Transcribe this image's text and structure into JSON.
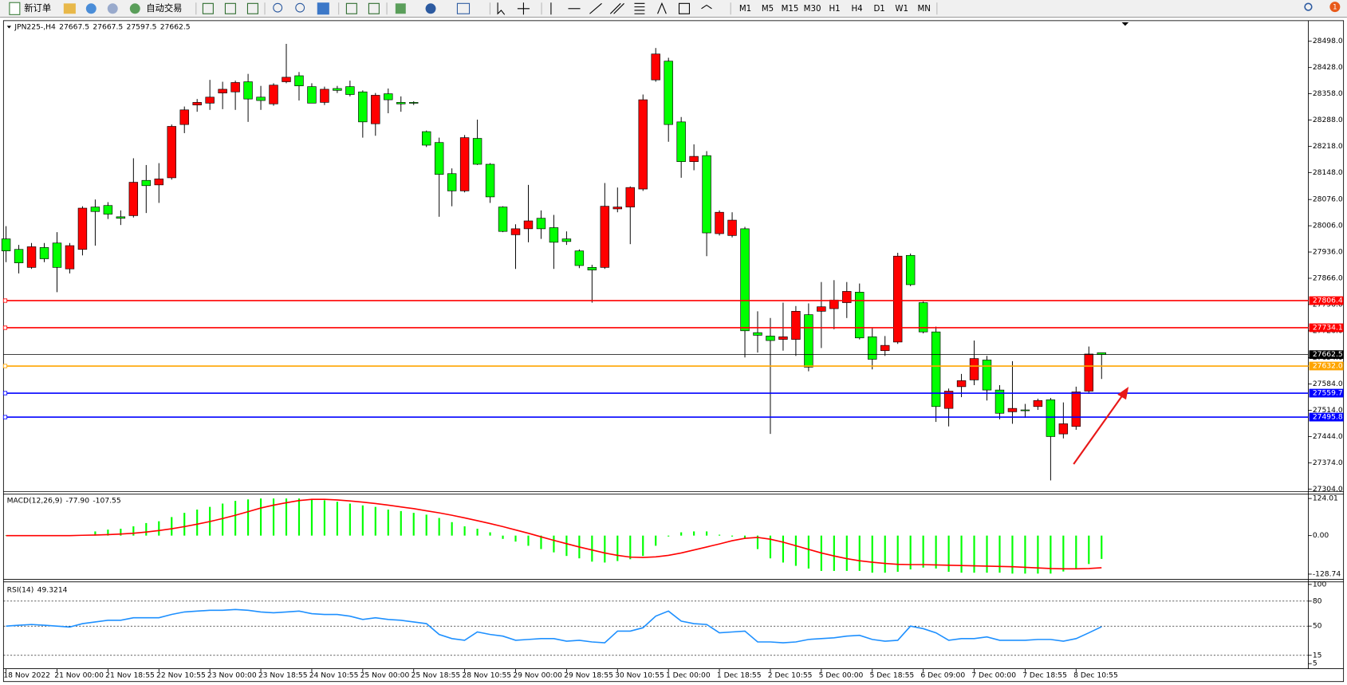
{
  "toolbar": {
    "buttons": [
      "新订单",
      "自动交易"
    ],
    "timeframes": [
      "M1",
      "M5",
      "M15",
      "M30",
      "H1",
      "H4",
      "D1",
      "W1",
      "MN"
    ],
    "notifications": 1
  },
  "chart_data": [
    {
      "type": "candlestick",
      "symbol": "JPN225-,H4",
      "up_color": "#ff0000",
      "down_color": "#00ff00",
      "categories": [
        "18 Nov 2022",
        null,
        null,
        null,
        "21 Nov 00:00",
        null,
        null,
        null,
        "21 Nov 18:55",
        null,
        null,
        null,
        "22 Nov 10:55",
        null,
        null,
        null,
        "23 Nov 00:00",
        null,
        null,
        null,
        "23 Nov 18:55",
        null,
        null,
        null,
        "24 Nov 10:55",
        null,
        null,
        null,
        "25 Nov 00:00",
        null,
        null,
        null,
        "25 Nov 18:55",
        null,
        null,
        null,
        "28 Nov 10:55",
        null,
        null,
        null,
        "29 Nov 00:00",
        null,
        null,
        null,
        "29 Nov 18:55",
        null,
        null,
        null,
        "30 Nov 10:55",
        null,
        null,
        null,
        "1 Dec 00:00",
        null,
        null,
        null,
        "1 Dec 18:55",
        null,
        null,
        null,
        "2 Dec 10:55",
        null,
        null,
        null,
        "5 Dec 00:00",
        null,
        null,
        null,
        "5 Dec 18:55",
        null,
        null,
        null,
        "6 Dec 09:00",
        null,
        null,
        null,
        "7 Dec 00:00",
        null,
        null,
        null,
        "7 Dec 18:55",
        null,
        null,
        null,
        "8 Dec 10:55",
        null,
        null
      ],
      "open": [
        27971,
        27943,
        27895,
        27948,
        27960,
        27891,
        27943,
        28056,
        28060,
        28030,
        28033,
        28127,
        28115,
        28134,
        28276,
        28328,
        28333,
        28360,
        28363,
        28390,
        28349,
        28331,
        28390,
        28406,
        28377,
        28335,
        28372,
        28377,
        28363,
        28278,
        28358,
        28335,
        28335,
        28257,
        28228,
        28145,
        28099,
        28239,
        28170,
        28056,
        27982,
        27998,
        28026,
        28001,
        27971,
        27939,
        27895,
        27895,
        28051,
        28056,
        28104,
        28395,
        28445,
        28283,
        28177,
        28193,
        27985,
        27980,
        27998,
        27721,
        27712,
        27703,
        27703,
        27769,
        27778,
        27785,
        27801,
        27829,
        27710,
        27673,
        27696,
        27927,
        27801,
        27723,
        27519,
        27577,
        27595,
        27648,
        27568,
        27510,
        27515,
        27524,
        27542,
        27451,
        27471,
        27565,
        27667.5
      ],
      "high": [
        28005,
        27955,
        27960,
        27960,
        27989,
        27960,
        28058,
        28076,
        28069,
        28047,
        28186,
        28168,
        28173,
        28276,
        28324,
        28344,
        28395,
        28390,
        28393,
        28411,
        28379,
        28386,
        28491,
        28416,
        28386,
        28377,
        28379,
        28393,
        28367,
        28360,
        28372,
        28351,
        28338,
        28260,
        28241,
        28159,
        28248,
        28289,
        28173,
        28058,
        28010,
        28115,
        28047,
        28035,
        27991,
        27943,
        27902,
        28120,
        28108,
        28111,
        28356,
        28480,
        28454,
        28296,
        28223,
        28205,
        28047,
        28042,
        28003,
        27778,
        27760,
        27801,
        27792,
        27799,
        27856,
        27861,
        27856,
        27852,
        27733,
        27712,
        27934,
        27932,
        27804,
        27737,
        27572,
        27611,
        27700,
        27659,
        27581,
        27645,
        27531,
        27545,
        27547,
        27535,
        27577,
        27684,
        27667.5
      ],
      "low": [
        27909,
        27879,
        27891,
        27909,
        27829,
        27879,
        27927,
        27953,
        28024,
        28008,
        28028,
        28040,
        28067,
        28129,
        28253,
        28310,
        28315,
        28317,
        28315,
        28283,
        28315,
        28326,
        28386,
        28340,
        28333,
        28328,
        28360,
        28351,
        28241,
        28246,
        28306,
        28310,
        28328,
        28216,
        28030,
        28058,
        28095,
        28168,
        28067,
        27989,
        27891,
        27962,
        27971,
        27891,
        27955,
        27893,
        27801,
        27891,
        28042,
        27957,
        28099,
        28390,
        28230,
        28134,
        28154,
        27925,
        27980,
        27975,
        27655,
        27668,
        27451,
        27673,
        27659,
        27618,
        27680,
        27730,
        27760,
        27703,
        27623,
        27659,
        27691,
        27845,
        27719,
        27483,
        27471,
        27549,
        27581,
        27540,
        27490,
        27478,
        27494,
        27515,
        27327,
        27439,
        27462,
        27558,
        27597.5
      ],
      "close": [
        27939,
        27907,
        27950,
        27918,
        27895,
        27953,
        28053,
        28044,
        28037,
        28026,
        28122,
        28113,
        28131,
        28271,
        28315,
        28335,
        28349,
        28370,
        28388,
        28344,
        28340,
        28381,
        28402,
        28379,
        28333,
        28370,
        28367,
        28356,
        28283,
        28354,
        28342,
        28331,
        28333,
        28221,
        28143,
        28099,
        28241,
        28170,
        28083,
        27991,
        27998,
        28019,
        27998,
        27962,
        27964,
        27900,
        27888,
        28058,
        28056,
        28108,
        28342,
        28464,
        28276,
        28177,
        28191,
        27987,
        28042,
        28021,
        27726,
        27714,
        27700,
        27710,
        27778,
        27629,
        27790,
        27808,
        27831,
        27707,
        27650,
        27687,
        27925,
        27849,
        27723,
        27524,
        27565,
        27593,
        27652,
        27568,
        27506,
        27519,
        27513,
        27540,
        27444,
        27478,
        27563,
        27664,
        27662.5
      ],
      "ylim": [
        27304,
        28498
      ],
      "yticks": [
        {
          "value": 28498,
          "label": "28498.0"
        },
        {
          "value": 28428,
          "label": "28428.0"
        },
        {
          "value": 28358,
          "label": "28358.0"
        },
        {
          "value": 28288,
          "label": "28288.0"
        },
        {
          "value": 28218,
          "label": "28218.0"
        },
        {
          "value": 28148,
          "label": "28148.0"
        },
        {
          "value": 28076,
          "label": "28076.0"
        },
        {
          "value": 28006,
          "label": "28006.0"
        },
        {
          "value": 27936,
          "label": "27936.0"
        },
        {
          "value": 27866,
          "label": "27866.0"
        },
        {
          "value": 27796,
          "label": "27796.0"
        },
        {
          "value": 27726,
          "label": "27726.0"
        },
        {
          "value": 27654,
          "label": "27654.0"
        },
        {
          "value": 27584,
          "label": "27584.0"
        },
        {
          "value": 27514,
          "label": "27514.0"
        },
        {
          "value": 27444,
          "label": "27444.0"
        },
        {
          "value": 27374,
          "label": "27374.0"
        },
        {
          "value": 27304,
          "label": "27304.0"
        }
      ],
      "hlines": [
        {
          "value": 27806.4,
          "color": "#ff0000"
        },
        {
          "value": 27734.1,
          "color": "#ff0000"
        },
        {
          "value": 27662.5,
          "color": "#000000"
        },
        {
          "value": 27632,
          "label": "27632.0",
          "color": "#ffa500"
        },
        {
          "value": 27559.7,
          "color": "#0000ff"
        },
        {
          "value": 27495.8,
          "color": "#0000ff"
        }
      ]
    },
    {
      "type": "macd",
      "label": "MACD(12,26,9)",
      "series": [
        {
          "color": "#00ff00",
          "last_value_label": "-77.90",
          "values": [
            0.5,
            0.5,
            0.5,
            0.5,
            0.5,
            1,
            3,
            14,
            20,
            23,
            31,
            42,
            48,
            62,
            76,
            87,
            96,
            107,
            116,
            121,
            124,
            124,
            124,
            124,
            121,
            118,
            113,
            107,
            101,
            96,
            87,
            82,
            76,
            70,
            59,
            45,
            31,
            23,
            11,
            -11,
            -20,
            -34,
            -45,
            -56,
            -68,
            -76,
            -87,
            -90,
            -85,
            -79,
            -68,
            -34,
            -3,
            11,
            14,
            14,
            3,
            -3,
            -11,
            -45,
            -76,
            -90,
            -101,
            -110,
            -118,
            -118,
            -118,
            -118,
            -124,
            -124,
            -121,
            -113,
            -107,
            -110,
            -121,
            -124,
            -124,
            -124,
            -124,
            -127,
            -127,
            -127,
            -127,
            -120,
            -110,
            -95,
            -77.9
          ]
        },
        {
          "color": "#ff0000",
          "values": [
            0,
            0,
            0,
            0,
            0,
            0,
            1,
            2,
            3,
            5,
            8,
            12,
            17,
            23,
            30,
            38,
            47,
            57,
            68,
            80,
            92,
            102,
            110,
            117,
            121,
            121,
            119,
            116,
            112,
            107,
            102,
            96,
            90,
            83,
            76,
            68,
            59,
            50,
            40,
            30,
            19,
            8,
            -4,
            -16,
            -27,
            -38,
            -48,
            -58,
            -66,
            -72,
            -73,
            -71,
            -66,
            -58,
            -48,
            -38,
            -28,
            -17,
            -9,
            -6,
            -12,
            -22,
            -34,
            -46,
            -58,
            -68,
            -77,
            -84,
            -89,
            -93,
            -96,
            -97,
            -97,
            -98,
            -99,
            -100,
            -101,
            -102,
            -103,
            -104,
            -106,
            -108,
            -110,
            -111,
            -111,
            -110,
            -107.55
          ]
        }
      ],
      "ylim": [
        -128.74,
        124.01
      ],
      "yticks": [
        {
          "value": 124.01,
          "label": "124.01"
        },
        {
          "value": 0,
          "label": "0.00"
        },
        {
          "value": -128.74,
          "label": "-128.74"
        }
      ]
    },
    {
      "type": "rsi",
      "label": "RSI(14)",
      "color": "#1e90ff",
      "values": [
        50,
        51,
        52,
        51,
        50,
        49,
        53,
        55,
        57,
        57,
        60,
        60,
        60,
        64,
        67,
        68,
        69,
        69,
        70,
        69,
        67,
        66,
        67,
        68,
        65,
        64,
        64,
        62,
        58,
        60,
        58,
        57,
        55,
        53,
        40,
        35,
        33,
        43,
        40,
        38,
        33,
        34,
        35,
        35,
        32,
        33,
        31,
        30,
        44,
        44,
        48,
        62,
        68,
        56,
        53,
        52,
        42,
        43,
        44,
        31,
        31,
        30,
        31,
        34,
        35,
        36,
        38,
        39,
        34,
        32,
        33,
        50,
        47,
        42,
        33,
        35,
        35,
        37,
        33,
        33,
        33,
        34,
        34,
        32,
        35,
        42,
        49.3214
      ],
      "ylim": [
        0,
        100
      ],
      "yticks": [
        100,
        80,
        50,
        15,
        5
      ],
      "levels": [
        80,
        50,
        15
      ]
    }
  ]
}
